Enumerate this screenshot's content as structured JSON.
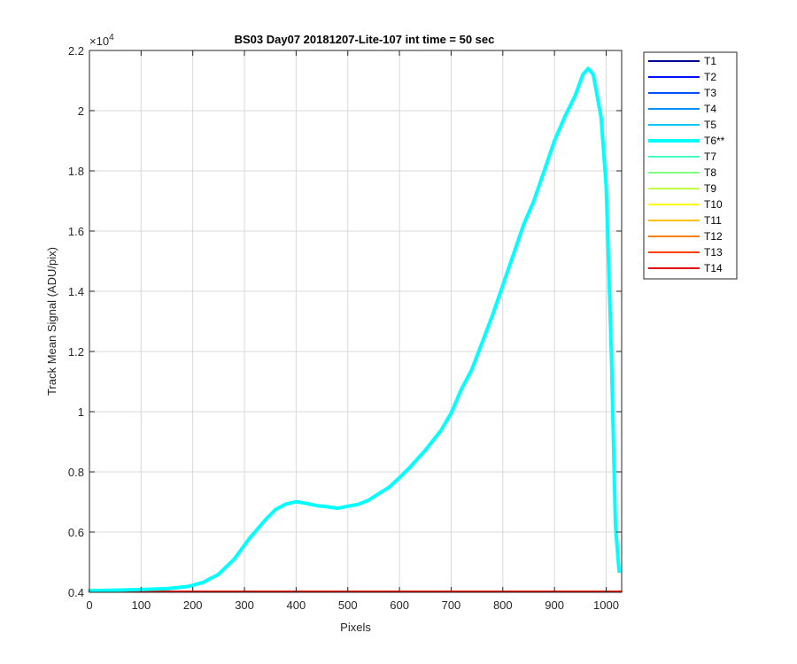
{
  "chart_data": {
    "type": "line",
    "title": "BS03 Day07 20181207-Lite-107 int time = 50 sec",
    "xlabel": "Pixels",
    "ylabel": "Track Mean Signal (ADU/pix)",
    "xlim": [
      0,
      1030
    ],
    "ylim": [
      0.4,
      2.2
    ],
    "y_exponent_label": "×10",
    "y_exponent_power": "4",
    "y_multiplier": 10000,
    "grid": true,
    "legend_position": "outside-right",
    "xticks": [
      "0",
      "100",
      "200",
      "300",
      "400",
      "500",
      "600",
      "700",
      "800",
      "900",
      "1000"
    ],
    "yticks": [
      "0.4",
      "0.6",
      "0.8",
      "1",
      "1.2",
      "1.4",
      "1.6",
      "1.8",
      "2",
      "2.2"
    ],
    "series": [
      {
        "name": "T1",
        "color": "#00008f",
        "values": [
          [
            0,
            0.403
          ],
          [
            1030,
            0.403
          ]
        ]
      },
      {
        "name": "T2",
        "color": "#0010ff",
        "values": [
          [
            0,
            0.403
          ],
          [
            1030,
            0.403
          ]
        ]
      },
      {
        "name": "T3",
        "color": "#0050ff",
        "values": [
          [
            0,
            0.403
          ],
          [
            1030,
            0.403
          ]
        ]
      },
      {
        "name": "T4",
        "color": "#0090ff",
        "values": [
          [
            0,
            0.403
          ],
          [
            1030,
            0.403
          ]
        ]
      },
      {
        "name": "T5",
        "color": "#00c8ff",
        "values": [
          [
            0,
            0.403
          ],
          [
            1030,
            0.403
          ]
        ]
      },
      {
        "name": "T6**",
        "color": "#00ffff",
        "highlight": true,
        "values": [
          [
            0,
            0.405
          ],
          [
            50,
            0.407
          ],
          [
            100,
            0.409
          ],
          [
            150,
            0.412
          ],
          [
            190,
            0.419
          ],
          [
            220,
            0.433
          ],
          [
            250,
            0.46
          ],
          [
            280,
            0.51
          ],
          [
            310,
            0.58
          ],
          [
            340,
            0.64
          ],
          [
            360,
            0.675
          ],
          [
            380,
            0.693
          ],
          [
            400,
            0.701
          ],
          [
            420,
            0.695
          ],
          [
            440,
            0.688
          ],
          [
            460,
            0.684
          ],
          [
            480,
            0.679
          ],
          [
            500,
            0.686
          ],
          [
            520,
            0.692
          ],
          [
            540,
            0.706
          ],
          [
            560,
            0.728
          ],
          [
            580,
            0.749
          ],
          [
            600,
            0.781
          ],
          [
            620,
            0.815
          ],
          [
            650,
            0.872
          ],
          [
            680,
            0.937
          ],
          [
            700,
            0.995
          ],
          [
            720,
            1.075
          ],
          [
            740,
            1.14
          ],
          [
            760,
            1.23
          ],
          [
            780,
            1.32
          ],
          [
            800,
            1.42
          ],
          [
            820,
            1.52
          ],
          [
            840,
            1.62
          ],
          [
            860,
            1.7
          ],
          [
            880,
            1.8
          ],
          [
            900,
            1.9
          ],
          [
            920,
            1.98
          ],
          [
            940,
            2.05
          ],
          [
            955,
            2.12
          ],
          [
            965,
            2.14
          ],
          [
            975,
            2.12
          ],
          [
            990,
            1.98
          ],
          [
            1000,
            1.75
          ],
          [
            1010,
            1.2
          ],
          [
            1018,
            0.62
          ],
          [
            1025,
            0.47
          ]
        ]
      },
      {
        "name": "T7",
        "color": "#40ffc0",
        "values": [
          [
            0,
            0.403
          ],
          [
            1030,
            0.403
          ]
        ]
      },
      {
        "name": "T8",
        "color": "#80ff80",
        "values": [
          [
            0,
            0.403
          ],
          [
            1030,
            0.403
          ]
        ]
      },
      {
        "name": "T9",
        "color": "#c0ff40",
        "values": [
          [
            0,
            0.403
          ],
          [
            1030,
            0.403
          ]
        ]
      },
      {
        "name": "T10",
        "color": "#ffff00",
        "values": [
          [
            0,
            0.403
          ],
          [
            1030,
            0.403
          ]
        ]
      },
      {
        "name": "T11",
        "color": "#ffc000",
        "values": [
          [
            0,
            0.403
          ],
          [
            1030,
            0.403
          ]
        ]
      },
      {
        "name": "T12",
        "color": "#ff8000",
        "values": [
          [
            0,
            0.403
          ],
          [
            1030,
            0.403
          ]
        ]
      },
      {
        "name": "T13",
        "color": "#ff4000",
        "values": [
          [
            0,
            0.403
          ],
          [
            1030,
            0.403
          ]
        ]
      },
      {
        "name": "T14",
        "color": "#e00000",
        "values": [
          [
            0,
            0.403
          ],
          [
            1030,
            0.403
          ]
        ]
      }
    ]
  }
}
